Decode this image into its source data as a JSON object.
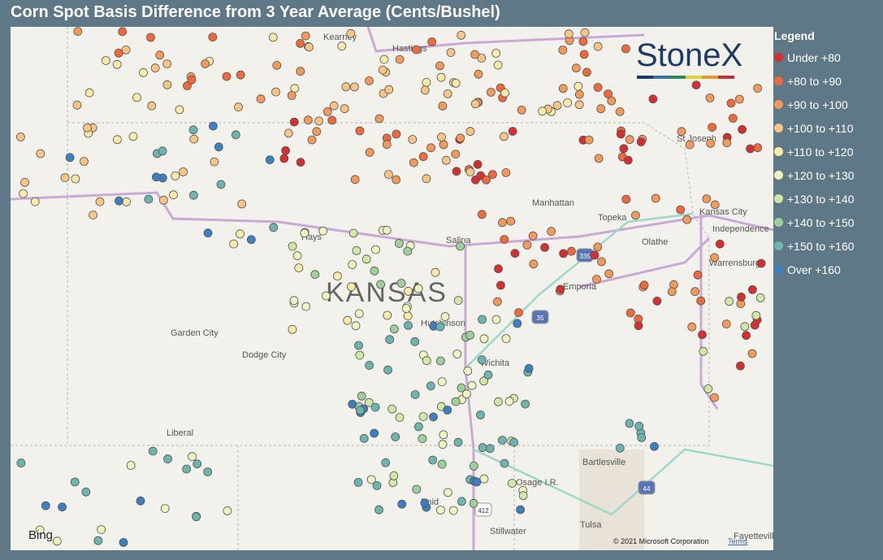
{
  "title": "Corn Spot Basis Difference from 3 Year Average (Cents/Bushel)",
  "logo": "StoneX",
  "legend": {
    "title": "Legend",
    "items": [
      {
        "name": "Under +80",
        "color": "#d62f2f"
      },
      {
        "name": "+80 to +90",
        "color": "#ee6a3c"
      },
      {
        "name": "+90 to +100",
        "color": "#f39a5b"
      },
      {
        "name": "+100 to +110",
        "color": "#f8c585"
      },
      {
        "name": "+110 to +120",
        "color": "#fbeaa8"
      },
      {
        "name": "+120 to +130",
        "color": "#f0f5c0"
      },
      {
        "name": "+130 to +140",
        "color": "#cfe8a6"
      },
      {
        "name": "+140 to +150",
        "color": "#9dd09b"
      },
      {
        "name": "+150 to +160",
        "color": "#6cb4ae"
      },
      {
        "name": "Over +160",
        "color": "#3d7fbf"
      }
    ]
  },
  "map_labels": {
    "state": "KANSAS",
    "places": [
      "Kearney",
      "Hastings",
      "St Joseph",
      "Manhattan",
      "Topeka",
      "Kansas City",
      "Independence",
      "Olathe",
      "Hays",
      "Salina",
      "Warrensburg",
      "Emporia",
      "Hutchinson",
      "Garden City",
      "Dodge City",
      "Wichita",
      "Liberal",
      "Bartlesville",
      "Osage I.R.",
      "Tulsa",
      "Stillwater",
      "Enid",
      "Fayetteville"
    ],
    "shields": [
      "335",
      "35",
      "44",
      "412"
    ]
  },
  "attribution": {
    "provider": "Bing",
    "copyright": "© 2021 Microsoft Corporation",
    "terms": "Terms"
  }
}
